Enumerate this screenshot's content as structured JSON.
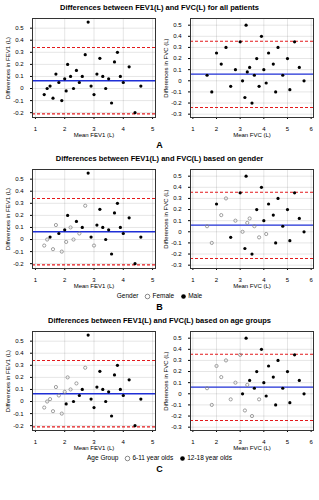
{
  "chart_data": [
    {
      "label": "A",
      "title": "Differences between FEV1(L) and FVC(L) for all patients",
      "charts": [
        {
          "type": "scatter",
          "xlabel": "Mean FEV1 (L)",
          "ylabel": "Differences in FEV1 (L)",
          "xlim": [
            0.9,
            5.1
          ],
          "xticks": [
            1,
            2,
            3,
            4,
            5
          ],
          "ylim": [
            -0.24,
            0.58
          ],
          "yticks": [
            -0.2,
            -0.1,
            0,
            0.1,
            0.2,
            0.3,
            0.4,
            0.5
          ],
          "grid": true,
          "reference_lines": [
            {
              "value": 0.065,
              "color": "#1f2fd6",
              "line_style": "solid"
            },
            {
              "value": 0.34,
              "color": "#e31a1c",
              "line_style": "dashed"
            },
            {
              "value": -0.21,
              "color": "#e31a1c",
              "line_style": "dashed"
            }
          ],
          "series": [
            {
              "color": "#000000",
              "marker": "filled",
              "x": [
                1.3,
                1.4,
                1.5,
                1.6,
                1.7,
                1.8,
                1.9,
                2.0,
                2.05,
                2.1,
                2.2,
                2.3,
                2.4,
                2.5,
                2.6,
                2.7,
                2.8,
                2.9,
                3.0,
                3.1,
                3.2,
                3.3,
                3.4,
                3.5,
                3.6,
                3.7,
                3.8,
                3.9,
                4.0,
                4.2,
                4.4,
                4.6
              ],
              "values": [
                -0.05,
                0.0,
                0.02,
                -0.08,
                0.12,
                0.05,
                -0.1,
                0.08,
                -0.02,
                0.2,
                0.1,
                0.0,
                0.15,
                0.05,
                0.1,
                0.28,
                0.55,
                0.02,
                -0.05,
                0.12,
                0.25,
                0.1,
                0.0,
                0.08,
                -0.12,
                0.22,
                0.3,
                0.1,
                0.05,
                0.18,
                -0.2,
                0.02
              ]
            }
          ]
        },
        {
          "type": "scatter",
          "xlabel": "Mean FVC (L)",
          "ylabel": "Differences in FVC (L)",
          "xlim": [
            0.9,
            6.1
          ],
          "xticks": [
            1,
            2,
            3,
            4,
            5,
            6
          ],
          "ylim": [
            -0.33,
            0.56
          ],
          "yticks": [
            -0.3,
            -0.2,
            -0.1,
            0,
            0.1,
            0.2,
            0.3,
            0.4,
            0.5
          ],
          "grid": true,
          "reference_lines": [
            {
              "value": 0.06,
              "color": "#1f2fd6",
              "line_style": "solid"
            },
            {
              "value": 0.355,
              "color": "#e31a1c",
              "line_style": "dashed"
            },
            {
              "value": -0.24,
              "color": "#e31a1c",
              "line_style": "dashed"
            }
          ],
          "series": [
            {
              "color": "#000000",
              "marker": "filled",
              "x": [
                1.6,
                1.8,
                2.0,
                2.2,
                2.4,
                2.6,
                2.8,
                3.0,
                3.1,
                3.2,
                3.3,
                3.4,
                3.5,
                3.6,
                3.7,
                3.8,
                3.9,
                4.0,
                4.1,
                4.2,
                4.4,
                4.5,
                4.6,
                4.8,
                5.0,
                5.1,
                5.3,
                5.5,
                5.7,
                3.25
              ],
              "values": [
                0.05,
                -0.1,
                0.25,
                0.15,
                0.3,
                -0.05,
                0.1,
                0.35,
                0.0,
                -0.15,
                0.08,
                0.12,
                -0.2,
                0.05,
                0.2,
                -0.05,
                0.4,
                0.1,
                -0.02,
                0.25,
                0.15,
                -0.1,
                0.3,
                0.05,
                0.2,
                -0.08,
                0.35,
                0.12,
                0.0,
                0.5
              ]
            }
          ]
        }
      ]
    },
    {
      "label": "B",
      "title": "Differences between FEV1(L) and FVC(L) based on gender",
      "legend_title": "Gender",
      "legend": "bottom",
      "charts": [
        {
          "type": "scatter",
          "xlabel": "Mean FEV1 (L)",
          "ylabel": "Differences in FEV1 (L)",
          "xlim": [
            0.9,
            5.1
          ],
          "xticks": [
            1,
            2,
            3,
            4,
            5
          ],
          "ylim": [
            -0.24,
            0.58
          ],
          "yticks": [
            -0.2,
            -0.1,
            0,
            0.1,
            0.2,
            0.3,
            0.4,
            0.5
          ],
          "grid": true,
          "reference_lines": [
            {
              "value": 0.065,
              "color": "#1f2fd6",
              "line_style": "solid"
            },
            {
              "value": 0.34,
              "color": "#e31a1c",
              "line_style": "dashed"
            },
            {
              "value": -0.21,
              "color": "#e31a1c",
              "line_style": "dashed"
            }
          ],
          "series": [
            {
              "name": "Female",
              "color": "#888888",
              "marker": "open",
              "x": [
                1.3,
                1.4,
                1.6,
                1.7,
                1.9,
                2.05,
                2.2,
                2.3,
                2.5,
                2.7,
                3.0
              ],
              "values": [
                -0.05,
                0.0,
                -0.08,
                0.12,
                -0.1,
                -0.02,
                0.1,
                0.0,
                0.05,
                0.28,
                -0.05
              ]
            },
            {
              "name": "Male",
              "color": "#000000",
              "marker": "filled",
              "x": [
                1.5,
                1.8,
                2.0,
                2.1,
                2.4,
                2.6,
                2.8,
                2.9,
                3.1,
                3.2,
                3.3,
                3.4,
                3.5,
                3.6,
                3.7,
                3.8,
                3.9,
                4.0,
                4.2,
                4.4,
                4.6
              ],
              "values": [
                0.02,
                0.05,
                0.08,
                0.2,
                0.15,
                0.1,
                0.55,
                0.02,
                0.12,
                0.25,
                0.1,
                0.0,
                0.08,
                -0.12,
                0.22,
                0.3,
                0.1,
                0.05,
                0.18,
                -0.2,
                0.02
              ]
            }
          ]
        },
        {
          "type": "scatter",
          "xlabel": "Mean FVC (L)",
          "ylabel": "Differences in FVC (L)",
          "xlim": [
            0.9,
            6.1
          ],
          "xticks": [
            1,
            2,
            3,
            4,
            5,
            6
          ],
          "ylim": [
            -0.33,
            0.56
          ],
          "yticks": [
            -0.3,
            -0.2,
            -0.1,
            0,
            0.1,
            0.2,
            0.3,
            0.4,
            0.5
          ],
          "grid": true,
          "reference_lines": [
            {
              "value": 0.06,
              "color": "#1f2fd6",
              "line_style": "solid"
            },
            {
              "value": 0.355,
              "color": "#e31a1c",
              "line_style": "dashed"
            },
            {
              "value": -0.24,
              "color": "#e31a1c",
              "line_style": "dashed"
            }
          ],
          "series": [
            {
              "name": "Female",
              "color": "#888888",
              "marker": "open",
              "x": [
                1.6,
                1.8,
                2.2,
                2.4,
                2.8,
                3.1,
                3.3,
                3.4,
                3.6,
                3.8,
                4.1
              ],
              "values": [
                0.05,
                -0.1,
                0.15,
                0.3,
                0.1,
                0.0,
                0.08,
                0.12,
                0.05,
                -0.05,
                -0.02
              ]
            },
            {
              "name": "Male",
              "color": "#000000",
              "marker": "filled",
              "x": [
                2.0,
                2.6,
                3.0,
                3.2,
                3.5,
                3.7,
                3.9,
                4.0,
                4.2,
                4.4,
                4.5,
                4.6,
                4.8,
                5.0,
                5.1,
                5.3,
                5.5,
                5.7,
                3.25
              ],
              "values": [
                0.25,
                -0.05,
                0.35,
                -0.15,
                -0.2,
                0.2,
                0.4,
                0.1,
                0.25,
                0.15,
                -0.1,
                0.3,
                0.05,
                0.2,
                -0.08,
                0.35,
                0.12,
                0.0,
                0.5
              ]
            }
          ]
        }
      ]
    },
    {
      "label": "C",
      "title": "Differences between FEV1(L) and FVC(L) based on age groups",
      "legend_title": "Age Group",
      "legend": "bottom",
      "charts": [
        {
          "type": "scatter",
          "xlabel": "Mean FEV1 (L)",
          "ylabel": "Differences in FEV1 (L)",
          "xlim": [
            0.9,
            5.1
          ],
          "xticks": [
            1,
            2,
            3,
            4,
            5
          ],
          "ylim": [
            -0.24,
            0.58
          ],
          "yticks": [
            -0.2,
            -0.1,
            0,
            0.1,
            0.2,
            0.3,
            0.4,
            0.5
          ],
          "grid": true,
          "reference_lines": [
            {
              "value": 0.065,
              "color": "#1f2fd6",
              "line_style": "solid"
            },
            {
              "value": 0.34,
              "color": "#e31a1c",
              "line_style": "dashed"
            },
            {
              "value": -0.21,
              "color": "#e31a1c",
              "line_style": "dashed"
            }
          ],
          "series": [
            {
              "name": "6-11 year olds",
              "color": "#888888",
              "marker": "open",
              "x": [
                1.3,
                1.4,
                1.5,
                1.6,
                1.7,
                1.8,
                1.9,
                2.0,
                2.1,
                2.2,
                2.4,
                2.7
              ],
              "values": [
                -0.05,
                0.0,
                0.02,
                -0.08,
                0.12,
                0.05,
                -0.1,
                0.08,
                0.2,
                0.1,
                0.15,
                0.28
              ]
            },
            {
              "name": "12-18 year olds",
              "color": "#000000",
              "marker": "filled",
              "x": [
                2.05,
                2.3,
                2.5,
                2.6,
                2.8,
                2.9,
                3.0,
                3.1,
                3.2,
                3.3,
                3.4,
                3.5,
                3.6,
                3.7,
                3.8,
                3.9,
                4.0,
                4.2,
                4.4,
                4.6
              ],
              "values": [
                -0.02,
                0.0,
                0.05,
                0.1,
                0.55,
                0.02,
                -0.05,
                0.12,
                0.25,
                0.1,
                0.0,
                0.08,
                -0.12,
                0.22,
                0.3,
                0.1,
                0.05,
                0.18,
                -0.2,
                0.02
              ]
            }
          ]
        },
        {
          "type": "scatter",
          "xlabel": "Mean FVC (L)",
          "ylabel": "Differences in FVC (L)",
          "xlim": [
            0.9,
            6.1
          ],
          "xticks": [
            1,
            2,
            3,
            4,
            5,
            6
          ],
          "ylim": [
            -0.33,
            0.56
          ],
          "yticks": [
            -0.3,
            -0.2,
            -0.1,
            0,
            0.1,
            0.2,
            0.3,
            0.4,
            0.5
          ],
          "grid": true,
          "reference_lines": [
            {
              "value": 0.06,
              "color": "#1f2fd6",
              "line_style": "solid"
            },
            {
              "value": 0.355,
              "color": "#e31a1c",
              "line_style": "dashed"
            },
            {
              "value": -0.24,
              "color": "#e31a1c",
              "line_style": "dashed"
            }
          ],
          "series": [
            {
              "name": "6-11 year olds",
              "color": "#888888",
              "marker": "open",
              "x": [
                1.6,
                1.8,
                2.0,
                2.2,
                2.4,
                2.6,
                2.8,
                3.0,
                3.2,
                3.3,
                3.5,
                3.8
              ],
              "values": [
                0.05,
                -0.1,
                0.25,
                0.15,
                0.3,
                -0.05,
                0.1,
                0.35,
                -0.15,
                0.08,
                -0.2,
                -0.05
              ]
            },
            {
              "name": "12-18 year olds",
              "color": "#000000",
              "marker": "filled",
              "x": [
                3.1,
                3.4,
                3.6,
                3.7,
                3.9,
                4.0,
                4.1,
                4.2,
                4.4,
                4.5,
                4.6,
                4.8,
                5.0,
                5.1,
                5.3,
                5.5,
                5.7,
                3.25
              ],
              "values": [
                0.0,
                0.12,
                0.05,
                0.2,
                0.4,
                0.1,
                -0.02,
                0.25,
                0.15,
                -0.1,
                0.3,
                0.05,
                0.2,
                -0.08,
                0.35,
                0.12,
                0.0,
                0.5
              ]
            }
          ]
        }
      ]
    }
  ]
}
